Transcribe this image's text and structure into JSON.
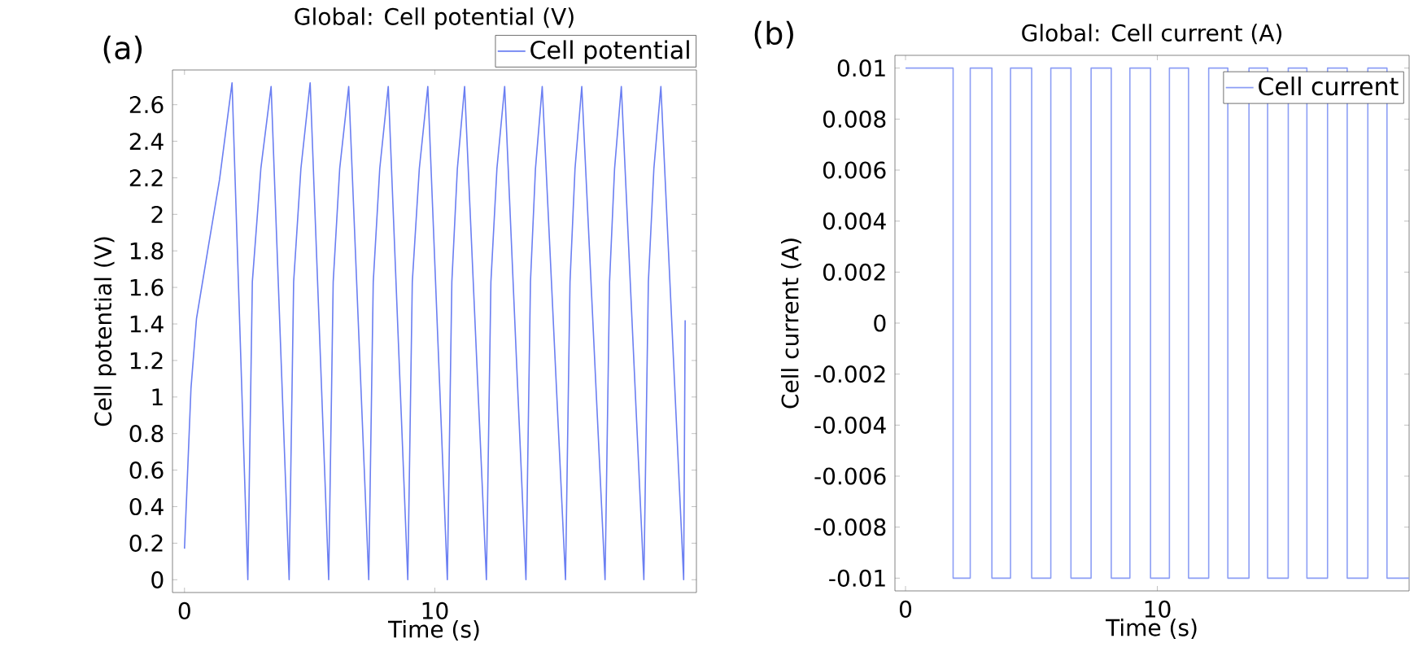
{
  "chart_data": [
    {
      "type": "line",
      "title": "Global: Cell potential (V)",
      "xlabel": "Time (s)",
      "ylabel": "Cell potential (V)",
      "annotations": [
        "(a)"
      ],
      "legend": "top right",
      "x": [
        0,
        0.26,
        0.48,
        0.95,
        1.4,
        1.9,
        2.53,
        2.71,
        3.05,
        3.46,
        4.18,
        4.36,
        4.65,
        5.02,
        5.76,
        5.94,
        6.2,
        6.56,
        7.36,
        7.54,
        7.8,
        8.14,
        8.92,
        9.1,
        9.38,
        9.72,
        10.5,
        10.68,
        10.9,
        11.19,
        12.06,
        12.24,
        12.48,
        12.79,
        13.64,
        13.82,
        14.02,
        14.29,
        15.22,
        15.4,
        15.6,
        15.87,
        16.8,
        16.98,
        17.18,
        17.45,
        18.35,
        18.53,
        18.75,
        19.03,
        19.94,
        20.0
      ],
      "series": [
        {
          "name": "Cell potential",
          "color": "#6b7ff2",
          "values": [
            0.17,
            1.05,
            1.43,
            1.82,
            2.19,
            2.72,
            0,
            1.63,
            2.25,
            2.7,
            0,
            1.63,
            2.25,
            2.72,
            0,
            1.63,
            2.25,
            2.7,
            0,
            1.63,
            2.25,
            2.7,
            0,
            1.63,
            2.25,
            2.7,
            0,
            1.63,
            2.25,
            2.7,
            0,
            1.63,
            2.25,
            2.7,
            0,
            1.63,
            2.25,
            2.7,
            0,
            1.63,
            2.25,
            2.7,
            0,
            1.63,
            2.25,
            2.7,
            0,
            1.63,
            2.25,
            2.7,
            0,
            1.42
          ]
        }
      ],
      "xlim": [
        -0.48,
        20.45
      ],
      "ylim": [
        -0.07,
        2.79
      ],
      "xticks": [
        0,
        10
      ],
      "yticks": [
        0,
        0.2,
        0.4,
        0.6,
        0.8,
        1,
        1.2,
        1.4,
        1.6,
        1.8,
        2,
        2.2,
        2.4,
        2.6
      ]
    },
    {
      "type": "step",
      "title": "Global: Cell current (A)",
      "xlabel": "Time (s)",
      "ylabel": "Cell current (A)",
      "annotations": [
        "(b)"
      ],
      "legend": "top right",
      "x": [
        0,
        1.89,
        2.57,
        3.43,
        4.17,
        5.01,
        5.77,
        6.57,
        7.37,
        8.17,
        8.91,
        9.73,
        10.48,
        11.24,
        12.04,
        12.8,
        13.64,
        14.38,
        15.2,
        15.94,
        16.76,
        17.54,
        18.36,
        19.12,
        20.0
      ],
      "series": [
        {
          "name": "Cell current",
          "color": "#8c9ef5",
          "values": [
            0.01,
            -0.01,
            0.01,
            -0.01,
            0.01,
            -0.01,
            0.01,
            -0.01,
            0.01,
            -0.01,
            0.01,
            -0.01,
            0.01,
            -0.01,
            0.01,
            -0.01,
            0.01,
            -0.01,
            0.01,
            -0.01,
            0.01,
            -0.01,
            0.01,
            -0.01,
            -0.01
          ]
        }
      ],
      "xlim": [
        -0.42,
        20.0
      ],
      "ylim": [
        -0.0105,
        0.0105
      ],
      "xticks": [
        0,
        10
      ],
      "yticks": [
        -0.01,
        -0.008,
        -0.006,
        -0.004,
        -0.002,
        0,
        0.002,
        0.004,
        0.006,
        0.008,
        0.01
      ]
    }
  ]
}
